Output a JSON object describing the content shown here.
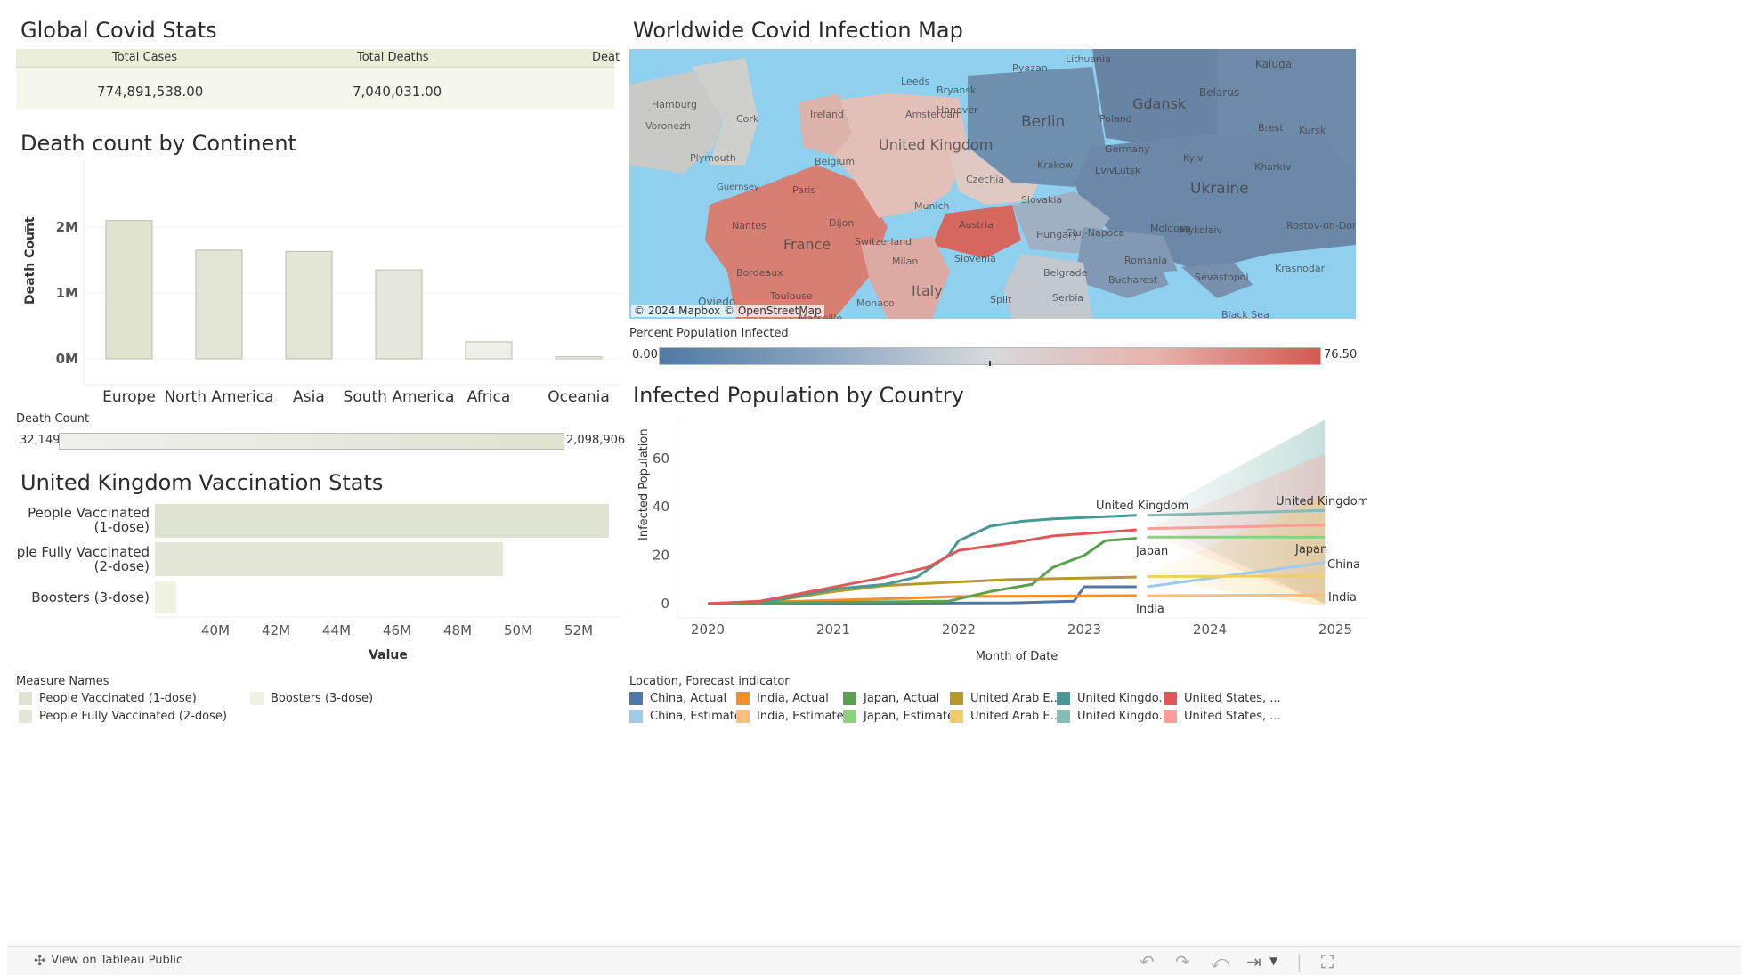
{
  "global_stats": {
    "title": "Global Covid Stats",
    "columns": [
      "Total Cases",
      "Total Deaths",
      "Deat"
    ],
    "values": [
      "774,891,538.00",
      "7,040,031.00",
      ""
    ]
  },
  "death_by_continent": {
    "title": "Death count by Continent",
    "legend_title": "Death Count",
    "legend_min": "32,149",
    "legend_max": "2,098,906"
  },
  "uk_vaccination": {
    "title": "United Kingdom Vaccination Stats",
    "legend_title": "Measure Names",
    "legend": [
      {
        "label": "People Vaccinated (1-dose)",
        "color": "#dfe3d2"
      },
      {
        "label": "Boosters (3-dose)",
        "color": "#f0f3e4"
      },
      {
        "label": "People Fully Vaccinated (2-dose)",
        "color": "#e5e8d8"
      }
    ]
  },
  "map": {
    "title": "Worldwide Covid Infection Map",
    "attribution": "© 2024 Mapbox  © OpenStreetMap",
    "legend_title": "Percent Population Infected",
    "legend_min": "0.00",
    "legend_max": "76.50",
    "labels": [
      {
        "text": "Lithuania"
      },
      {
        "text": "Kaluga"
      },
      {
        "text": "Ryazan"
      },
      {
        "text": "Gdansk"
      },
      {
        "text": "Belarus"
      },
      {
        "text": "Bryansk"
      },
      {
        "text": "Leeds"
      },
      {
        "text": "Hamburg"
      },
      {
        "text": "Ireland"
      },
      {
        "text": "Amsterdam"
      },
      {
        "text": "Hanover"
      },
      {
        "text": "Berlin"
      },
      {
        "text": "Poland"
      },
      {
        "text": "Brest"
      },
      {
        "text": "Kursk"
      },
      {
        "text": "Voronezh"
      },
      {
        "text": "Cork"
      },
      {
        "text": "United Kingdom"
      },
      {
        "text": "Germany"
      },
      {
        "text": "Lutsk"
      },
      {
        "text": "Plymouth"
      },
      {
        "text": "Belgium"
      },
      {
        "text": "Krakow"
      },
      {
        "text": "Lviv"
      },
      {
        "text": "Kyiv"
      },
      {
        "text": "Kharkiv"
      },
      {
        "text": "Guernsey"
      },
      {
        "text": "Czechia"
      },
      {
        "text": "Ukraine"
      },
      {
        "text": "Paris"
      },
      {
        "text": "Slovakia"
      },
      {
        "text": "Munich"
      },
      {
        "text": "Austria"
      },
      {
        "text": "Dijon"
      },
      {
        "text": "Hungary"
      },
      {
        "text": "Cluj-Napoca"
      },
      {
        "text": "Moldova"
      },
      {
        "text": "Mykolaiv"
      },
      {
        "text": "Rostov-on-Don"
      },
      {
        "text": "Nantes"
      },
      {
        "text": "Switzerland"
      },
      {
        "text": "France"
      },
      {
        "text": "Romania"
      },
      {
        "text": "Slovenia"
      },
      {
        "text": "Krasnodar"
      },
      {
        "text": "Bordeaux"
      },
      {
        "text": "Belgrade"
      },
      {
        "text": "Bucharest"
      },
      {
        "text": "Sevastopol"
      },
      {
        "text": "Milan"
      },
      {
        "text": "Italy"
      },
      {
        "text": "Split"
      },
      {
        "text": "Serbia"
      },
      {
        "text": "Toulouse"
      },
      {
        "text": "Oviedo"
      },
      {
        "text": "Monaco"
      },
      {
        "text": "Marseille"
      },
      {
        "text": "Black Sea"
      }
    ]
  },
  "infected_by_country": {
    "title": "Infected Population by Country",
    "legend_title": "Location, Forecast indicator",
    "legend": [
      {
        "label": "China, Actual",
        "color": "#4e79a7"
      },
      {
        "label": "India, Actual",
        "color": "#f28e2b"
      },
      {
        "label": "Japan, Actual",
        "color": "#59a14f"
      },
      {
        "label": "United Arab E...",
        "color": "#b6992d"
      },
      {
        "label": "United Kingdo...",
        "color": "#499894"
      },
      {
        "label": "United States, ...",
        "color": "#e15759"
      },
      {
        "label": "China, Estimate",
        "color": "#a0cbe8"
      },
      {
        "label": "India, Estimate",
        "color": "#ffbe7d"
      },
      {
        "label": "Japan, Estimate",
        "color": "#8cd17d"
      },
      {
        "label": "United Arab E...",
        "color": "#f1ce63"
      },
      {
        "label": "United Kingdo...",
        "color": "#86bcb6"
      },
      {
        "label": "United States, ...",
        "color": "#ff9d9a"
      }
    ]
  },
  "chart_data": [
    {
      "type": "bar",
      "title": "Death count by Continent",
      "categories": [
        "Europe",
        "North America",
        "Asia",
        "South America",
        "Africa",
        "Oceania"
      ],
      "values": [
        2098906,
        1650000,
        1630000,
        1350000,
        258000,
        32149
      ],
      "xlabel": "",
      "ylabel": "Death Count",
      "yticks": [
        "0M",
        "1M",
        "2M"
      ],
      "ylim": [
        0,
        2400000
      ],
      "grid": true
    },
    {
      "type": "bar",
      "orientation": "horizontal",
      "title": "United Kingdom Vaccination Stats",
      "categories": [
        "People Vaccinated (1-dose)",
        "People Fully Vaccinated (2-dose)",
        "Boosters (3-dose)"
      ],
      "values": [
        53000000,
        49500000,
        38700000
      ],
      "xlabel": "Value",
      "xticks": [
        "40M",
        "42M",
        "44M",
        "46M",
        "48M",
        "50M",
        "52M"
      ],
      "xlim": [
        38000000,
        53800000
      ]
    },
    {
      "type": "line",
      "title": "Infected Population by Country",
      "xlabel": "Month of Date",
      "ylabel": "Infected Population",
      "xticks": [
        "2020",
        "2021",
        "2022",
        "2023",
        "2024",
        "2025"
      ],
      "yticks": [
        "0",
        "20",
        "40",
        "60"
      ],
      "xlim": [
        "2020-01",
        "2025-01"
      ],
      "ylim": [
        -2,
        76
      ],
      "series": [
        {
          "name": "China, Actual",
          "points": [
            [
              "2020-01",
              0
            ],
            [
              "2022-06",
              0.3
            ],
            [
              "2022-12",
              1
            ],
            [
              "2023-01",
              7
            ],
            [
              "2023-06",
              7
            ]
          ]
        },
        {
          "name": "India, Actual",
          "points": [
            [
              "2020-01",
              0
            ],
            [
              "2021-06",
              2
            ],
            [
              "2022-01",
              3
            ],
            [
              "2023-06",
              3.3
            ]
          ]
        },
        {
          "name": "Japan, Actual",
          "points": [
            [
              "2020-01",
              0
            ],
            [
              "2021-12",
              1
            ],
            [
              "2022-04",
              5
            ],
            [
              "2022-08",
              8
            ],
            [
              "2022-10",
              15
            ],
            [
              "2023-01",
              20
            ],
            [
              "2023-03",
              26
            ],
            [
              "2023-06",
              27
            ]
          ]
        },
        {
          "name": "United Arab Emirates, Actual",
          "points": [
            [
              "2020-01",
              0
            ],
            [
              "2020-07",
              1
            ],
            [
              "2021-01",
              5
            ],
            [
              "2021-06",
              7.5
            ],
            [
              "2022-01",
              9
            ],
            [
              "2022-06",
              10
            ],
            [
              "2023-06",
              11
            ]
          ]
        },
        {
          "name": "United Kingdom, Actual",
          "points": [
            [
              "2020-01",
              0
            ],
            [
              "2020-07",
              1
            ],
            [
              "2021-01",
              6
            ],
            [
              "2021-06",
              8
            ],
            [
              "2021-09",
              11
            ],
            [
              "2021-12",
              20
            ],
            [
              "2022-01",
              26
            ],
            [
              "2022-04",
              32
            ],
            [
              "2022-07",
              34
            ],
            [
              "2022-10",
              35
            ],
            [
              "2023-06",
              36.5
            ]
          ]
        },
        {
          "name": "United States, Actual",
          "points": [
            [
              "2020-01",
              0
            ],
            [
              "2020-06",
              1
            ],
            [
              "2020-12",
              6
            ],
            [
              "2021-06",
              11
            ],
            [
              "2021-10",
              15
            ],
            [
              "2022-01",
              22
            ],
            [
              "2022-06",
              25
            ],
            [
              "2022-10",
              28
            ],
            [
              "2023-06",
              30.5
            ]
          ]
        },
        {
          "name": "China, Estimate",
          "points": [
            [
              "2023-07",
              7
            ],
            [
              "2024-12",
              17
            ]
          ]
        },
        {
          "name": "India, Estimate",
          "points": [
            [
              "2023-07",
              3.3
            ],
            [
              "2024-12",
              3.6
            ]
          ]
        },
        {
          "name": "Japan, Estimate",
          "points": [
            [
              "2023-07",
              27.5
            ],
            [
              "2024-12",
              27.5
            ]
          ]
        },
        {
          "name": "United Arab Emirates, Estimate",
          "points": [
            [
              "2023-07",
              11.2
            ],
            [
              "2024-12",
              11.5
            ]
          ]
        },
        {
          "name": "United Kingdom, Estimate",
          "points": [
            [
              "2023-07",
              36.5
            ],
            [
              "2024-12",
              38.5
            ]
          ]
        },
        {
          "name": "United States, Estimate",
          "points": [
            [
              "2023-07",
              31
            ],
            [
              "2024-12",
              32.5
            ]
          ]
        }
      ],
      "annotations": [
        "United Kingdom",
        "Japan",
        "India",
        "United Kingdom",
        "Japan",
        "China",
        "India"
      ]
    }
  ]
}
